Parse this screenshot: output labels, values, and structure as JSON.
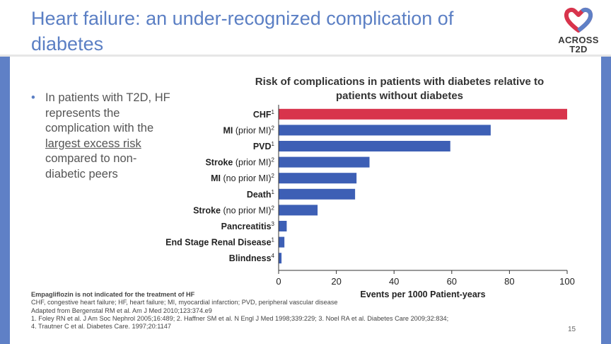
{
  "slide": {
    "title": "Heart failure: an under-recognized complication of diabetes",
    "logo": {
      "line1": "ACROSS",
      "line2": "T2D"
    },
    "bullet": {
      "before": "In patients with T2D, HF represents the complication with the ",
      "underlined": "largest excess risk",
      "after": " compared to non-diabetic peers"
    },
    "footnotes": {
      "disclaimer": "Empagliflozin is not indicated for the treatment of HF",
      "abbreviations": "CHF, congestive heart failure; HF, heart failure; MI, myocardial infarction; PVD, peripheral vascular disease",
      "adapted": "Adapted from Bergenstal RM et al. Am J Med 2010;123:374.e9",
      "refs1": "1. Foley RN et al. J Am Soc Nephrol 2005;16:489; 2. Haffner SM et al. N Engl J Med 1998;339:229; 3. Noel RA et al. Diabetes Care 2009;32:834;",
      "refs2": "4. Trautner C et al. Diabetes Care. 1997;20:1147"
    },
    "page_number": "15",
    "colors": {
      "title": "#5b7fc4",
      "side_bars": "#5f80c6",
      "bar": "#3d5fb5",
      "highlight_bar": "#d8344c",
      "logo_red": "#d8344c"
    }
  },
  "chart_data": {
    "type": "bar",
    "orientation": "horizontal",
    "title": "Risk of complications in patients with diabetes relative to patients without diabetes",
    "xlabel": "Events per 1000 Patient-years",
    "ylabel": "",
    "xlim": [
      0,
      100
    ],
    "xticks": [
      0,
      20,
      40,
      60,
      80,
      100
    ],
    "grid": false,
    "categories": [
      {
        "label": "CHF",
        "sup": "1",
        "value": 100,
        "highlight": true
      },
      {
        "label": "MI",
        "suffix": " (prior MI)",
        "sup": "2",
        "value": 73.5
      },
      {
        "label": "PVD",
        "sup": "1",
        "value": 59.5
      },
      {
        "label": "Stroke",
        "suffix": " (prior MI)",
        "sup": "2",
        "value": 31.5
      },
      {
        "label": "MI",
        "suffix": " (no prior MI)",
        "sup": "2",
        "value": 27
      },
      {
        "label": "Death",
        "sup": "1",
        "value": 26.5
      },
      {
        "label": "Stroke",
        "suffix": " (no prior MI)",
        "sup": "2",
        "value": 13.5
      },
      {
        "label": "Pancreatitis",
        "sup": "3",
        "value": 2.8
      },
      {
        "label": "End Stage Renal Disease",
        "sup": "1",
        "value": 2
      },
      {
        "label": "Blindness",
        "sup": "4",
        "value": 1
      }
    ]
  }
}
